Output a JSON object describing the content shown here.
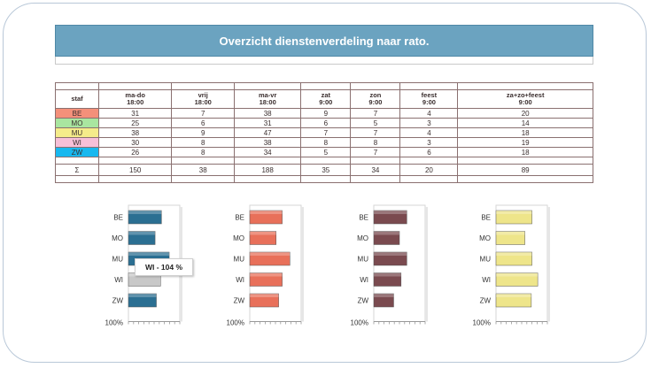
{
  "title": "Overzicht dienstenverdeling naar rato.",
  "table": {
    "staf_header": "staf",
    "columns": [
      {
        "l1": "ma-do",
        "l2": "18:00"
      },
      {
        "l1": "vrij",
        "l2": "18:00"
      },
      {
        "l1": "ma-vr",
        "l2": "18:00"
      },
      {
        "l1": "zat",
        "l2": "9:00"
      },
      {
        "l1": "zon",
        "l2": "9:00"
      },
      {
        "l1": "feest",
        "l2": "9:00"
      },
      {
        "l1": "za+zo+feest",
        "l2": "9:00"
      }
    ],
    "rows": [
      {
        "name": "BE",
        "color": "#f4907a",
        "values": [
          "31",
          "7",
          "38",
          "9",
          "7",
          "4",
          "20"
        ]
      },
      {
        "name": "MO",
        "color": "#a9e6a0",
        "values": [
          "25",
          "6",
          "31",
          "6",
          "5",
          "3",
          "14"
        ]
      },
      {
        "name": "MU",
        "color": "#f5ec8a",
        "values": [
          "38",
          "9",
          "47",
          "7",
          "7",
          "4",
          "18"
        ]
      },
      {
        "name": "WI",
        "color": "#f7c0d8",
        "values": [
          "30",
          "8",
          "38",
          "8",
          "8",
          "3",
          "19"
        ]
      },
      {
        "name": "ZW",
        "color": "#18b8ef",
        "values": [
          "26",
          "8",
          "34",
          "5",
          "7",
          "6",
          "18"
        ]
      }
    ],
    "sum_label": "Σ",
    "sum_values": [
      "150",
      "38",
      "188",
      "35",
      "34",
      "20",
      "89"
    ]
  },
  "callout": "WI - 104 %",
  "chart_data": [
    {
      "type": "bar",
      "categories": [
        "BE",
        "MO",
        "MU",
        "WI",
        "ZW"
      ],
      "values": [
        103,
        83,
        127,
        100,
        87
      ],
      "bottom_label": "100%",
      "color": "#2b6f92",
      "highlight": "WI",
      "highlight_color": "#c8c8c8"
    },
    {
      "type": "bar",
      "categories": [
        "BE",
        "MO",
        "MU",
        "WI",
        "ZW"
      ],
      "values": [
        101,
        82,
        125,
        101,
        90
      ],
      "bottom_label": "100%",
      "color": "#e8705a"
    },
    {
      "type": "bar",
      "categories": [
        "BE",
        "MO",
        "MU",
        "WI",
        "ZW"
      ],
      "values": [
        103,
        80,
        103,
        85,
        62
      ],
      "bottom_label": "100%",
      "color": "#7a4a4f"
    },
    {
      "type": "bar",
      "categories": [
        "BE",
        "MO",
        "MU",
        "WI",
        "ZW"
      ],
      "values": [
        112,
        90,
        112,
        130,
        110
      ],
      "bottom_label": "100%",
      "color": "#eee58a"
    }
  ]
}
